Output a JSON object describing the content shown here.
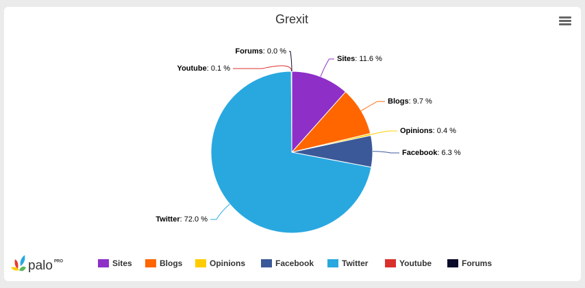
{
  "chart_data": {
    "type": "pie",
    "title": "Grexit",
    "categories": [
      "Sites",
      "Blogs",
      "Opinions",
      "Facebook",
      "Twitter",
      "Youtube",
      "Forums"
    ],
    "values": [
      11.6,
      9.7,
      0.4,
      6.3,
      72.0,
      0.1,
      0.0
    ],
    "value_labels": [
      "11.6 %",
      "9.7 %",
      "0.4 %",
      "6.3 %",
      "72.0 %",
      "0.1 %",
      "0.0 %"
    ],
    "label_separator": ": ",
    "colors": [
      "#8e2fc8",
      "#ff6600",
      "#ffcc00",
      "#3b5998",
      "#29a8e0",
      "#d9302c",
      "#0a0a2a"
    ],
    "legend": "bottom"
  },
  "logo": {
    "text": "palo",
    "badge": "PRO"
  }
}
